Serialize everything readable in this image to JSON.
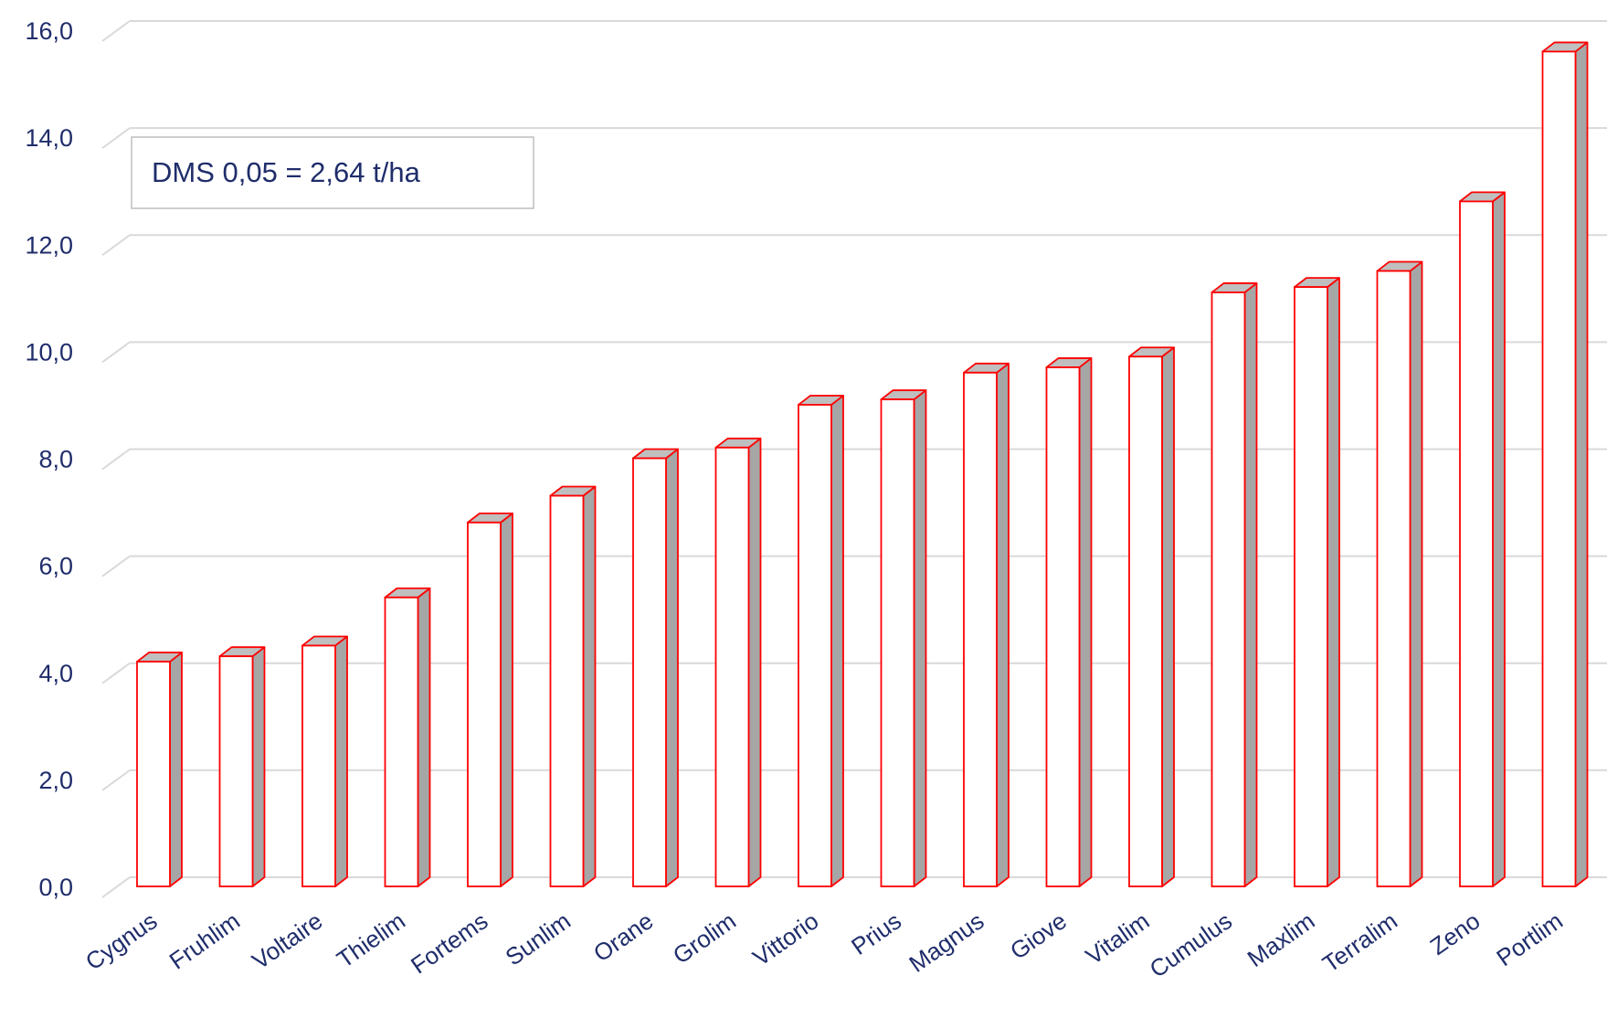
{
  "chart_data": {
    "type": "bar",
    "title": "",
    "xlabel": "",
    "ylabel": "",
    "ylim": [
      0,
      16
    ],
    "yticks": [
      "0,0",
      "2,0",
      "4,0",
      "6,0",
      "8,0",
      "10,0",
      "12,0",
      "14,0",
      "16,0"
    ],
    "grid": true,
    "categories": [
      "Cygnus",
      "Fruhlim",
      "Voltaire",
      "Thielim",
      "Fortems",
      "Sunlim",
      "Orane",
      "Grolim",
      "Vittorio",
      "Prius",
      "Magnus",
      "Giove",
      "Vitalim",
      "Cumulus",
      "Maxlim",
      "Terralim",
      "Zeno",
      "Portlim"
    ],
    "values": [
      4.2,
      4.3,
      4.5,
      5.4,
      6.8,
      7.3,
      8.0,
      8.2,
      9.0,
      9.1,
      9.6,
      9.7,
      9.9,
      11.1,
      11.2,
      11.5,
      12.8,
      15.6
    ],
    "annotation": "DMS 0,05 = 2,64 t/ha",
    "colors": {
      "bar_front": "#ffffff",
      "bar_side": "#a6a6a6",
      "bar_top": "#bfbfbf",
      "bar_outline": "#ff0000",
      "gridline": "#d9d9d9",
      "text": "#1f2d6b"
    }
  }
}
